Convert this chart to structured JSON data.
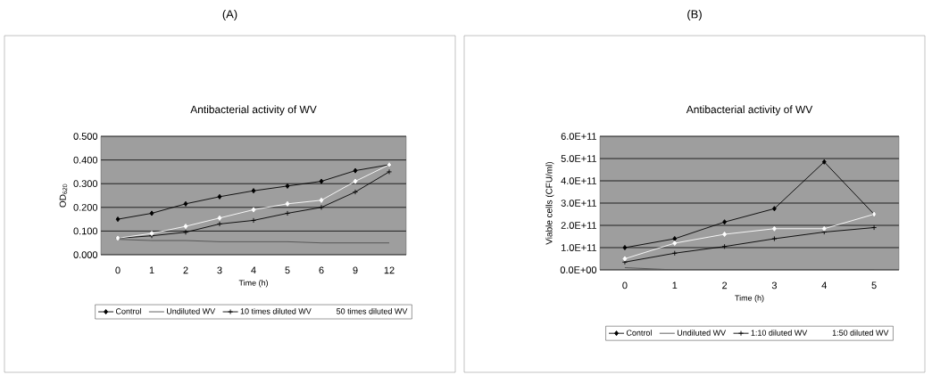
{
  "chart_data": [
    {
      "type": "line",
      "title": "Antibacterial activity of WV",
      "xlabel": "Time (h)",
      "ylabel": "OD$_{620}$",
      "annotations": [
        "(A)"
      ],
      "categories": [
        "0",
        "1",
        "2",
        "3",
        "4",
        "5",
        "6",
        "9",
        "12"
      ],
      "series": [
        {
          "name": "Control",
          "color": "#000000",
          "marker": "diamond",
          "values": [
            0.15,
            0.175,
            0.215,
            0.245,
            0.27,
            0.29,
            0.31,
            0.355,
            0.38
          ]
        },
        {
          "name": "Undiluted WV",
          "color": "#505050",
          "marker": "none",
          "values": [
            0.065,
            0.06,
            0.06,
            0.055,
            0.055,
            0.055,
            0.05,
            0.05,
            0.05
          ]
        },
        {
          "name": "10 times diluted WV",
          "color": "#000000",
          "marker": "cross",
          "values": [
            0.07,
            0.08,
            0.095,
            0.13,
            0.145,
            0.175,
            0.2,
            0.265,
            0.35
          ]
        },
        {
          "name": "50 times diluted WV",
          "color": "#ffffff",
          "marker": "diamond",
          "values": [
            0.07,
            0.09,
            0.12,
            0.155,
            0.19,
            0.215,
            0.23,
            0.31,
            0.38
          ]
        }
      ],
      "ylim": [
        0,
        0.5
      ],
      "yticks": [
        {
          "value": 0,
          "label": "0.000"
        },
        {
          "value": 0.1,
          "label": "0.100"
        },
        {
          "value": 0.2,
          "label": "0.200"
        },
        {
          "value": 0.3,
          "label": "0.300"
        },
        {
          "value": 0.4,
          "label": "0.400"
        },
        {
          "value": 0.5,
          "label": "0.500"
        }
      ],
      "grid": "y",
      "legend": "bottom"
    },
    {
      "type": "line",
      "title": "Antibacterial activity of WV",
      "xlabel": "Time (h)",
      "ylabel": "Viable cells (CFU/ml)",
      "annotations": [
        "(B)"
      ],
      "categories": [
        "0",
        "1",
        "2",
        "3",
        "4",
        "5"
      ],
      "series": [
        {
          "name": "Control",
          "color": "#000000",
          "marker": "diamond",
          "values": [
            100000000000.0,
            140000000000.0,
            215000000000.0,
            275000000000.0,
            485000000000.0,
            250000000000.0
          ]
        },
        {
          "name": "Undiluted WV",
          "color": "#505050",
          "marker": "none",
          "values": [
            10000000000.0,
            0,
            0,
            0,
            0,
            0
          ]
        },
        {
          "name": "1:10 diluted WV",
          "color": "#000000",
          "marker": "cross",
          "values": [
            35000000000.0,
            75000000000.0,
            105000000000.0,
            140000000000.0,
            170000000000.0,
            190000000000.0
          ]
        },
        {
          "name": "1:50 diluted WV",
          "color": "#ffffff",
          "marker": "diamond",
          "values": [
            50000000000.0,
            120000000000.0,
            160000000000.0,
            185000000000.0,
            185000000000.0,
            250000000000.0
          ]
        }
      ],
      "ylim": [
        0,
        600000000000.0
      ],
      "yticks": [
        {
          "value": 0,
          "label": "0.0E+00"
        },
        {
          "value": 100000000000.0,
          "label": "1.0E+11"
        },
        {
          "value": 200000000000.0,
          "label": "2.0E+11"
        },
        {
          "value": 300000000000.0,
          "label": "3.0E+11"
        },
        {
          "value": 400000000000.0,
          "label": "4.0E+11"
        },
        {
          "value": 500000000000.0,
          "label": "5.0E+11"
        },
        {
          "value": 600000000000.0,
          "label": "6.0E+11"
        }
      ],
      "grid": "y",
      "legend": "bottom"
    }
  ]
}
